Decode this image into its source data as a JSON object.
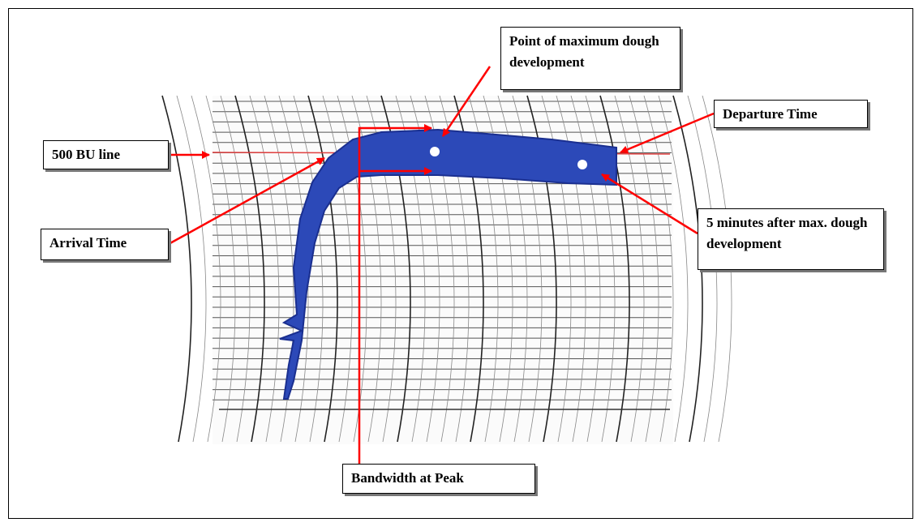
{
  "annotations": [
    {
      "text": "Point of maximum dough development"
    },
    {
      "text": "Departure Time"
    },
    {
      "text": "500 BU line"
    },
    {
      "text": "Arrival Time"
    },
    {
      "text": "5 minutes after max. dough development"
    },
    {
      "text": "Bandwidth at Peak"
    }
  ]
}
